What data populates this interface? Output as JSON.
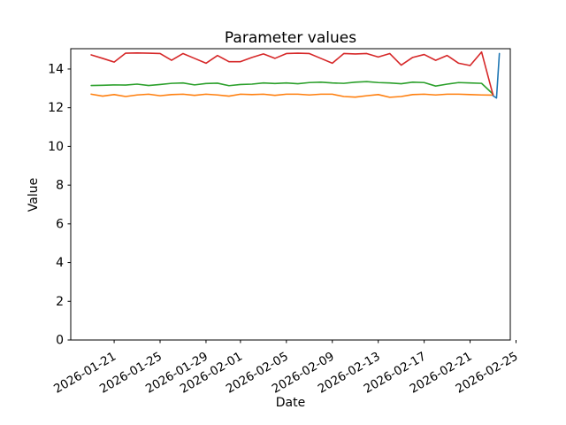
{
  "chart_data": {
    "type": "line",
    "title": "Parameter values",
    "xlabel": "Date",
    "ylabel": "Value",
    "grid": false,
    "legend": "none",
    "start_date": "2026-01-19",
    "end_date": "2026-02-23",
    "x_axis": {
      "tick_labels": [
        "2026-01-21",
        "2026-01-25",
        "2026-01-29",
        "2026-02-01",
        "2026-02-05",
        "2026-02-09",
        "2026-02-13",
        "2026-02-17",
        "2026-02-21",
        "2026-02-25"
      ],
      "tick_day_offsets": [
        2,
        6,
        10,
        13,
        17,
        21,
        25,
        29,
        33,
        37
      ],
      "label_rotation_deg": 30,
      "lim_day_offsets": [
        -1.78,
        36.5
      ]
    },
    "y_axis": {
      "tick_labels": [
        "0",
        "2",
        "4",
        "6",
        "8",
        "10",
        "12",
        "14"
      ],
      "tick_values": [
        0,
        2,
        4,
        6,
        8,
        10,
        12,
        14
      ],
      "lim": [
        0,
        15.05
      ]
    },
    "series": [
      {
        "name": "orange-line",
        "color": "#ff7f0e",
        "x_day_offsets": [
          0,
          1,
          2,
          3,
          4,
          5,
          6,
          7,
          8,
          9,
          10,
          11,
          12,
          13,
          14,
          15,
          16,
          17,
          18,
          19,
          20,
          21,
          22,
          23,
          24,
          25,
          26,
          27,
          28,
          29,
          30,
          31,
          32,
          33,
          34,
          35
        ],
        "values": [
          12.7,
          12.6,
          12.68,
          12.58,
          12.66,
          12.7,
          12.62,
          12.68,
          12.7,
          12.64,
          12.7,
          12.66,
          12.6,
          12.7,
          12.68,
          12.7,
          12.64,
          12.7,
          12.7,
          12.66,
          12.7,
          12.7,
          12.58,
          12.55,
          12.62,
          12.68,
          12.54,
          12.58,
          12.68,
          12.7,
          12.66,
          12.7,
          12.7,
          12.68,
          12.66,
          12.65
        ]
      },
      {
        "name": "green-line",
        "color": "#2ca02c",
        "x_day_offsets": [
          0,
          1,
          2,
          3,
          4,
          5,
          6,
          7,
          8,
          9,
          10,
          11,
          12,
          13,
          14,
          15,
          16,
          17,
          18,
          19,
          20,
          21,
          22,
          23,
          24,
          25,
          26,
          27,
          28,
          29,
          30,
          31,
          32,
          33,
          34,
          35
        ],
        "values": [
          13.15,
          13.16,
          13.18,
          13.17,
          13.22,
          13.15,
          13.2,
          13.26,
          13.28,
          13.18,
          13.25,
          13.27,
          13.14,
          13.2,
          13.22,
          13.28,
          13.25,
          13.28,
          13.24,
          13.3,
          13.32,
          13.28,
          13.26,
          13.32,
          13.35,
          13.3,
          13.28,
          13.24,
          13.32,
          13.3,
          13.12,
          13.22,
          13.3,
          13.28,
          13.26,
          12.7
        ]
      },
      {
        "name": "red-line",
        "color": "#d62728",
        "x_day_offsets": [
          0,
          1,
          2,
          3,
          4,
          5,
          6,
          7,
          8,
          9,
          10,
          11,
          12,
          13,
          14,
          15,
          16,
          17,
          18,
          19,
          20,
          21,
          22,
          23,
          24,
          25,
          26,
          27,
          28,
          29,
          30,
          31,
          32,
          33,
          34,
          35
        ],
        "values": [
          14.73,
          14.55,
          14.36,
          14.82,
          14.83,
          14.82,
          14.8,
          14.45,
          14.8,
          14.55,
          14.3,
          14.7,
          14.38,
          14.38,
          14.6,
          14.78,
          14.55,
          14.8,
          14.82,
          14.8,
          14.55,
          14.3,
          14.8,
          14.78,
          14.8,
          14.62,
          14.8,
          14.2,
          14.6,
          14.75,
          14.45,
          14.7,
          14.3,
          14.18,
          14.88,
          12.65
        ]
      },
      {
        "name": "blue-line",
        "color": "#1f77b4",
        "x_day_offsets": [
          35.0,
          35.3,
          35.55
        ],
        "values": [
          12.62,
          12.5,
          14.8
        ]
      }
    ]
  }
}
